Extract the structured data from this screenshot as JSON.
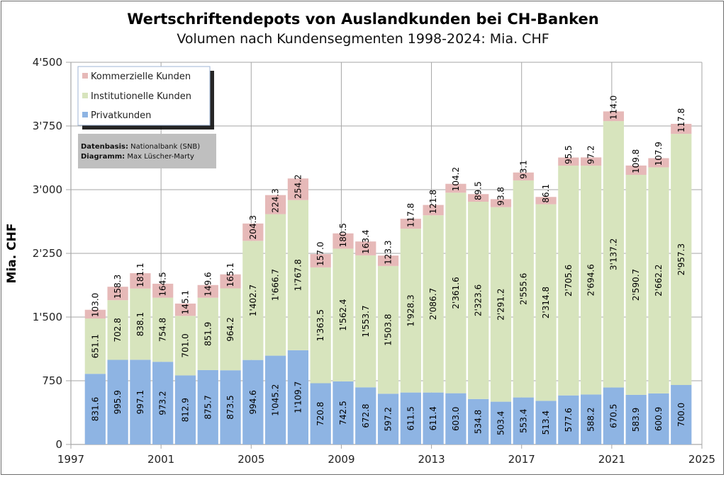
{
  "chart_data": {
    "type": "bar",
    "stacked": true,
    "title": "Wertschriftendepots  von Auslandkunden  bei CH-Banken",
    "subtitle": "Volumen nach Kundensegmenten 1998-2024: Mia. CHF",
    "xlabel": "",
    "ylabel": "Mia. CHF",
    "xlim": [
      1997,
      2025
    ],
    "ylim": [
      0,
      4500
    ],
    "x_ticks": [
      "1997",
      "2001",
      "2005",
      "2009",
      "2013",
      "2017",
      "2021",
      "2025"
    ],
    "x_tick_values": [
      1997,
      2001,
      2005,
      2009,
      2013,
      2017,
      2021,
      2025
    ],
    "y_ticks": [
      "0",
      "750",
      "1'500",
      "2'250",
      "3'000",
      "3'750",
      "4'500"
    ],
    "y_tick_values": [
      0,
      750,
      1500,
      2250,
      3000,
      3750,
      4500
    ],
    "grid": true,
    "legend_position": "top-left",
    "categories": [
      1998,
      1999,
      2000,
      2001,
      2002,
      2003,
      2004,
      2005,
      2006,
      2007,
      2008,
      2009,
      2010,
      2011,
      2012,
      2013,
      2014,
      2015,
      2016,
      2017,
      2018,
      2019,
      2020,
      2021,
      2022,
      2023,
      2024
    ],
    "series": [
      {
        "name": "Privatkunden",
        "color": "#8eb4e3",
        "values": [
          831.6,
          995.9,
          997.1,
          973.2,
          812.9,
          875.7,
          873.5,
          994.6,
          1045.2,
          1109.7,
          720.8,
          742.5,
          672.8,
          597.2,
          611.5,
          611.4,
          603.0,
          534.8,
          503.4,
          553.4,
          513.4,
          577.6,
          588.2,
          670.5,
          583.9,
          600.9,
          700.0
        ],
        "labels": [
          "831.6",
          "995.9",
          "997.1",
          "973.2",
          "812.9",
          "875.7",
          "873.5",
          "994.6",
          "1'045.2",
          "1'109.7",
          "720.8",
          "742.5",
          "672.8",
          "597.2",
          "611.5",
          "611.4",
          "603.0",
          "534.8",
          "503.4",
          "553.4",
          "513.4",
          "577.6",
          "588.2",
          "670.5",
          "583.9",
          "600.9",
          "700.0"
        ]
      },
      {
        "name": "Institutionelle Kunden",
        "color": "#d7e4bd",
        "values": [
          651.1,
          702.8,
          838.1,
          754.8,
          701.0,
          851.9,
          964.2,
          1402.7,
          1666.7,
          1767.8,
          1363.5,
          1562.4,
          1553.7,
          1503.8,
          1928.3,
          2086.7,
          2361.6,
          2323.6,
          2291.2,
          2555.6,
          2314.8,
          2705.6,
          2694.6,
          3137.2,
          2590.7,
          2662.2,
          2957.3
        ],
        "labels": [
          "651.1",
          "702.8",
          "838.1",
          "754.8",
          "701.0",
          "851.9",
          "964.2",
          "1'402.7",
          "1'666.7",
          "1'767.8",
          "1'363.5",
          "1'562.4",
          "1'553.7",
          "1'503.8",
          "1'928.3",
          "2'086.7",
          "2'361.6",
          "2'323.6",
          "2'291.2",
          "2'555.6",
          "2'314.8",
          "2'705.6",
          "2'694.6",
          "3'137.2",
          "2'590.7",
          "2'662.2",
          "2'957.3"
        ]
      },
      {
        "name": "Kommerzielle Kunden",
        "color": "#e6b9b8",
        "values": [
          103.0,
          158.3,
          181.1,
          164.5,
          145.1,
          149.6,
          165.1,
          204.3,
          224.3,
          254.2,
          157.0,
          180.5,
          163.4,
          123.3,
          117.8,
          121.8,
          104.2,
          89.5,
          93.8,
          93.1,
          86.1,
          95.5,
          97.2,
          114.0,
          109.8,
          107.9,
          117.8
        ],
        "labels": [
          "103.0",
          "158.3",
          "181.1",
          "164.5",
          "145.1",
          "149.6",
          "165.1",
          "204.3",
          "224.3",
          "254.2",
          "157.0",
          "180.5",
          "163.4",
          "123.3",
          "117.8",
          "121.8",
          "104.2",
          "89.5",
          "93.8",
          "93.1",
          "86.1",
          "95.5",
          "97.2",
          "114.0",
          "109.8",
          "107.9",
          "117.8"
        ]
      }
    ],
    "legend": [
      "Kommerzielle Kunden",
      "Institutionelle Kunden",
      "Privatkunden"
    ],
    "source_box": {
      "line1_bold": "Datenbasis:",
      "line1_text": "Nationalbank (SNB)",
      "line2_bold": "Diagramm:",
      "line2_text": "Max Lüscher-Marty"
    }
  }
}
